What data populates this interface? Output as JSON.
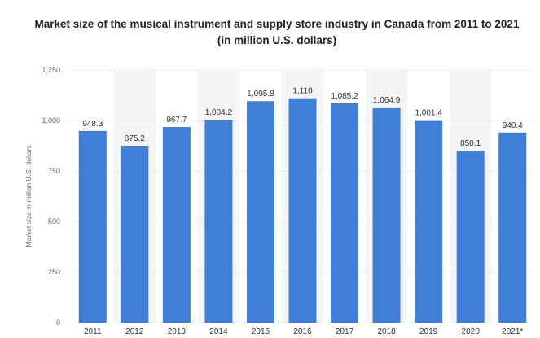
{
  "chart_data": {
    "type": "bar",
    "title": "Market size of the musical instrument and supply store industry in Canada from 2011 to 2021 (in million U.S. dollars)",
    "xlabel": "",
    "ylabel": "Market size in million U.S. dollars",
    "categories": [
      "2011",
      "2012",
      "2013",
      "2014",
      "2015",
      "2016",
      "2017",
      "2018",
      "2019",
      "2020",
      "2021*"
    ],
    "values": [
      948.3,
      875.2,
      967.7,
      1004.2,
      1095.8,
      1110,
      1085.2,
      1064.9,
      1001.4,
      850.1,
      940.4
    ],
    "value_labels": [
      "948.3",
      "875.2",
      "967.7",
      "1,004.2",
      "1,095.8",
      "1,110",
      "1,085.2",
      "1,064.9",
      "1,001.4",
      "850.1",
      "940.4"
    ],
    "yticks": [
      0,
      250,
      500,
      750,
      1000,
      1250
    ],
    "ytick_labels": [
      "0",
      "250",
      "500",
      "750",
      "1,000",
      "1,250"
    ],
    "ylim": [
      0,
      1250
    ],
    "grid": true,
    "legend": "none",
    "bar_color": "#3f7fd9",
    "band_color": "#f5f5f7",
    "grid_color": "#e3e3e3"
  }
}
